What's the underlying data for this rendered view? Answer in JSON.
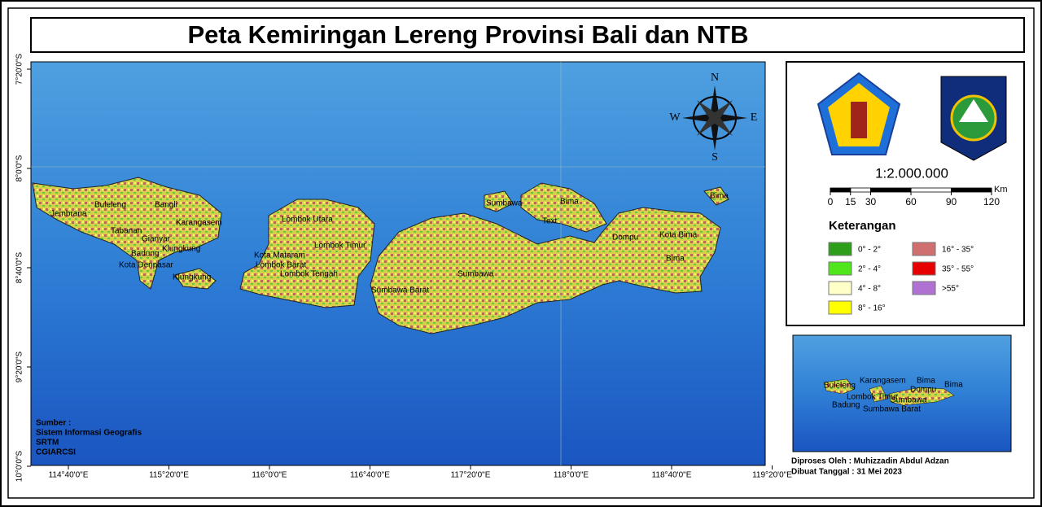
{
  "title": "Peta Kemiringan Lereng Provinsi Bali dan NTB",
  "map": {
    "x_ticks": [
      "114°40'0\"E",
      "115°20'0\"E",
      "116°0'0\"E",
      "116°40'0\"E",
      "117°20'0\"E",
      "118°0'0\"E",
      "118°40'0\"E",
      "119°20'0\"E"
    ],
    "y_ticks": [
      "7°20'0\"S",
      "8°0'0\"S",
      "8°40'0\"S",
      "9°20'0\"S",
      "10°0'0\"S"
    ],
    "compass": {
      "north": "N",
      "east": "E",
      "south": "S",
      "west": "W"
    },
    "region_labels": [
      "Buleleng",
      "Bangli",
      "Jembrana",
      "Karangasem",
      "Tabanan",
      "Gianyar",
      "Klungkung",
      "Badung",
      "Kota Denpasar",
      "Klungkung",
      "Lombok Utara",
      "Lombok Timur",
      "Kota Mataram",
      "Lombok Barat",
      "Lombok Tengah",
      "Sumbawa",
      "Bima",
      "Text",
      "Bima",
      "Dompu",
      "Kota Bima",
      "Bima",
      "Sumbawa Barat",
      "Sumbawa"
    ],
    "source": [
      "Sumber :",
      "Sistem Informasi Geografis",
      "SRTM",
      "CGIARCSI"
    ]
  },
  "scale": {
    "ratio": "1:2.000.000",
    "unit": "Km",
    "ticks": [
      0,
      15,
      30,
      60,
      90,
      120
    ]
  },
  "legend": {
    "title": "Keterangan",
    "items": [
      {
        "label": "0° - 2°",
        "color": "#2e9e1a"
      },
      {
        "label": "2° - 4°",
        "color": "#4fe61c"
      },
      {
        "label": "4° - 8°",
        "color": "#ffffc8"
      },
      {
        "label": "8° - 16°",
        "color": "#ffff00"
      },
      {
        "label": "16° - 35°",
        "color": "#cf6f6f"
      },
      {
        "label": "35° - 55°",
        "color": "#e60000"
      },
      {
        "label": ">55°",
        "color": "#b072d2"
      }
    ]
  },
  "inset": {
    "labels": [
      "Karangasem",
      "Bima",
      "Bima",
      "Buleleng",
      "Lombok Timur",
      "Dompu",
      "Badung",
      "Sumbawa",
      "Sumbawa Barat"
    ]
  },
  "credits": [
    "Diproses Oleh : Muhizzadin Abdul Adzan",
    "Dibuat Tanggal : 31 Mei 2023"
  ]
}
